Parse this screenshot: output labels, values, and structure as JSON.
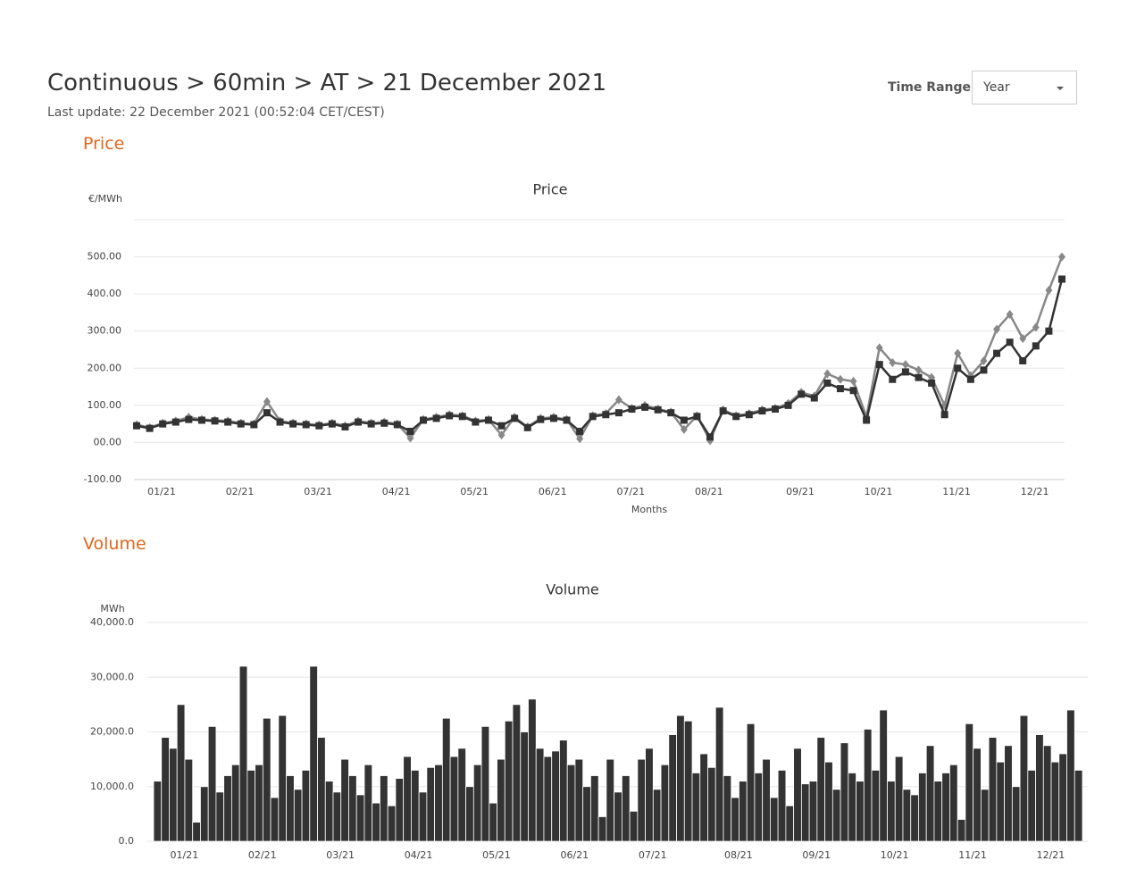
{
  "header": {
    "breadcrumb": "Continuous > 60min > AT > 21 December 2021",
    "last_update": "Last update: 22 December 2021 (00:52:04 CET/CEST)"
  },
  "controls": {
    "time_range_label": "Time Range",
    "time_range_value": "Year"
  },
  "sections": [
    "Price",
    "Volume"
  ],
  "chart_data": [
    {
      "type": "line",
      "title": "Price",
      "y_label": "€/MWh",
      "x_label": "Months",
      "categories": [
        "01/21",
        null,
        null,
        null,
        null,
        null,
        "02/21",
        null,
        null,
        null,
        null,
        null,
        "03/21",
        null,
        null,
        null,
        null,
        null,
        "04/21",
        null,
        null,
        null,
        null,
        null,
        "05/21",
        null,
        null,
        null,
        null,
        null,
        "06/21",
        null,
        null,
        null,
        null,
        null,
        "07/21",
        null,
        null,
        null,
        null,
        null,
        "08/21",
        null,
        null,
        null,
        null,
        null,
        null,
        "09/21",
        null,
        null,
        null,
        null,
        null,
        "10/21",
        null,
        null,
        null,
        null,
        null,
        "11/21",
        null,
        null,
        null,
        null,
        null,
        "12/21",
        null,
        null,
        null,
        null
      ],
      "series": [
        {
          "color": "#888888",
          "marker": "diamond",
          "values": [
            48,
            40,
            52,
            58,
            68,
            62,
            60,
            58,
            52,
            50,
            110,
            58,
            52,
            50,
            47,
            52,
            45,
            58,
            52,
            55,
            50,
            12,
            62,
            68,
            75,
            72,
            58,
            62,
            20,
            68,
            42,
            65,
            68,
            62,
            10,
            72,
            78,
            115,
            92,
            100,
            90,
            82,
            35,
            72,
            5,
            88,
            72,
            78,
            88,
            92,
            105,
            135,
            125,
            185,
            170,
            165,
            70,
            255,
            215,
            210,
            195,
            175,
            100,
            240,
            180,
            220,
            305,
            345,
            280,
            310,
            410,
            500
          ]
        },
        {
          "color": "#333333",
          "marker": "square",
          "values": [
            45,
            38,
            50,
            55,
            62,
            60,
            58,
            55,
            50,
            48,
            80,
            55,
            50,
            48,
            45,
            50,
            42,
            55,
            50,
            52,
            48,
            30,
            60,
            65,
            72,
            70,
            55,
            60,
            45,
            65,
            40,
            62,
            65,
            60,
            30,
            70,
            75,
            80,
            90,
            95,
            88,
            80,
            60,
            70,
            15,
            85,
            70,
            75,
            85,
            90,
            100,
            130,
            120,
            160,
            145,
            140,
            60,
            210,
            170,
            190,
            175,
            160,
            75,
            200,
            170,
            195,
            240,
            270,
            220,
            260,
            300,
            440
          ]
        }
      ],
      "ylim": [
        -100,
        600
      ],
      "yticks": [
        {
          "value": -100,
          "label": "-100.00"
        },
        {
          "value": 0,
          "label": "00.00"
        },
        {
          "value": 100,
          "label": "100.00"
        },
        {
          "value": 200,
          "label": "200.00"
        },
        {
          "value": 300,
          "label": "300.00"
        },
        {
          "value": 400,
          "label": "400.00"
        },
        {
          "value": 500,
          "label": "500.00"
        }
      ],
      "grid": true
    },
    {
      "type": "bar",
      "title": "Volume",
      "y_label": "MWh",
      "color": "#333333",
      "categories": [
        "01/21",
        null,
        null,
        null,
        null,
        null,
        null,
        null,
        null,
        null,
        "02/21",
        null,
        null,
        null,
        null,
        null,
        null,
        null,
        null,
        null,
        "03/21",
        null,
        null,
        null,
        null,
        null,
        null,
        null,
        null,
        null,
        "04/21",
        null,
        null,
        null,
        null,
        null,
        null,
        null,
        null,
        null,
        "05/21",
        null,
        null,
        null,
        null,
        null,
        null,
        null,
        null,
        null,
        "06/21",
        null,
        null,
        null,
        null,
        null,
        null,
        null,
        null,
        null,
        "07/21",
        null,
        null,
        null,
        null,
        null,
        null,
        null,
        null,
        null,
        null,
        "08/21",
        null,
        null,
        null,
        null,
        null,
        null,
        null,
        null,
        null,
        "09/21",
        null,
        null,
        null,
        null,
        null,
        null,
        null,
        null,
        null,
        "10/21",
        null,
        null,
        null,
        null,
        null,
        null,
        null,
        null,
        null,
        "11/21",
        null,
        null,
        null,
        null,
        null,
        null,
        null,
        null,
        null,
        "12/21",
        null,
        null,
        null,
        null,
        null,
        null,
        null
      ],
      "values": [
        11000,
        19000,
        17000,
        25000,
        15000,
        3500,
        10000,
        21000,
        9000,
        12000,
        14000,
        32000,
        13000,
        14000,
        22500,
        8000,
        23000,
        12000,
        9500,
        13000,
        32000,
        19000,
        11000,
        9000,
        15000,
        12000,
        8500,
        14000,
        7000,
        12000,
        6500,
        11500,
        15500,
        13000,
        9000,
        13500,
        14000,
        22500,
        15500,
        17000,
        10000,
        14000,
        21000,
        7000,
        15000,
        22000,
        25000,
        20000,
        26000,
        17000,
        15500,
        16500,
        18500,
        14000,
        15000,
        10000,
        12000,
        4500,
        15000,
        9000,
        12000,
        5500,
        15000,
        17000,
        9500,
        14000,
        19500,
        23000,
        22000,
        12500,
        16000,
        13500,
        24500,
        12000,
        8000,
        11000,
        21500,
        12500,
        15000,
        8000,
        13000,
        6500,
        17000,
        10500,
        11000,
        19000,
        14500,
        9500,
        18000,
        12500,
        11000,
        20500,
        13000,
        24000,
        11000,
        15500,
        9500,
        8500,
        12500,
        17500,
        11000,
        12500,
        14000,
        4000,
        21500,
        17000,
        9500,
        19000,
        14500,
        17500,
        10000,
        23000,
        13000,
        19500,
        17500,
        14500,
        16000,
        24000,
        13000
      ],
      "ylim": [
        0,
        40000
      ],
      "yticks": [
        {
          "value": 0,
          "label": "0.0"
        },
        {
          "value": 10000,
          "label": "10,000.0"
        },
        {
          "value": 20000,
          "label": "20,000.0"
        },
        {
          "value": 30000,
          "label": "30,000.0"
        },
        {
          "value": 40000,
          "label": "40,000.0"
        }
      ],
      "grid": true
    }
  ]
}
